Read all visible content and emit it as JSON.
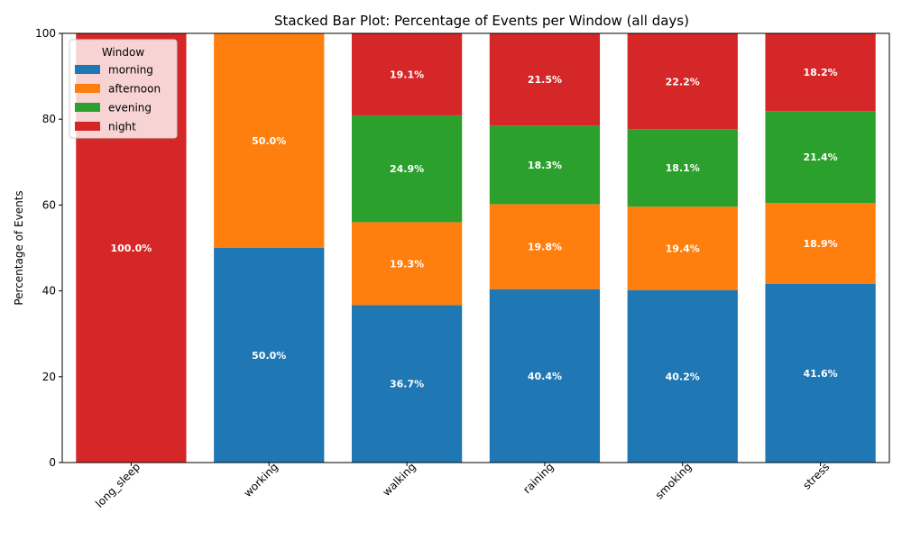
{
  "chart_data": {
    "type": "bar",
    "stacked": true,
    "title": "Stacked Bar Plot: Percentage of Events per Window (all days)",
    "xlabel": "",
    "ylabel": "Percentage of Events",
    "ylim": [
      0,
      100
    ],
    "yticks": [
      0,
      20,
      40,
      60,
      80,
      100
    ],
    "grid": false,
    "categories": [
      "long_sleep",
      "working",
      "walking",
      "raining",
      "smoking",
      "stress"
    ],
    "series": [
      {
        "name": "morning",
        "color": "#1f77b4",
        "values": [
          0,
          50.0,
          36.7,
          40.4,
          40.2,
          41.6
        ]
      },
      {
        "name": "afternoon",
        "color": "#ff7f0e",
        "values": [
          0,
          50.0,
          19.3,
          19.8,
          19.4,
          18.9
        ]
      },
      {
        "name": "evening",
        "color": "#2ca02c",
        "values": [
          0,
          0,
          24.9,
          18.3,
          18.1,
          21.4
        ]
      },
      {
        "name": "night",
        "color": "#d62728",
        "values": [
          100.0,
          0,
          19.1,
          21.5,
          22.2,
          18.2
        ]
      }
    ],
    "legend": {
      "title": "Window",
      "placement": "top-left"
    }
  }
}
